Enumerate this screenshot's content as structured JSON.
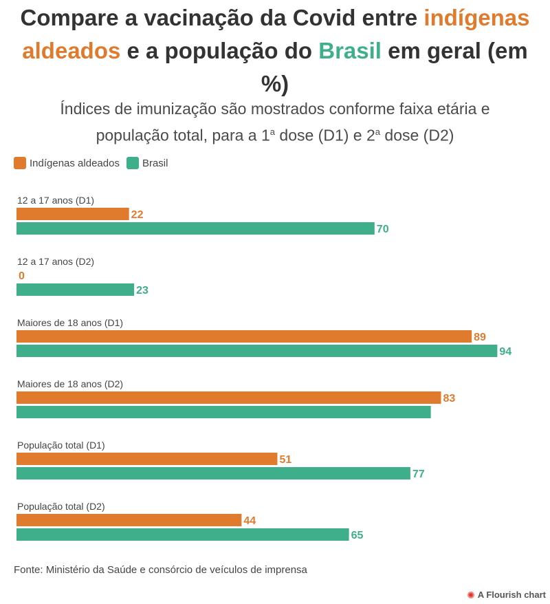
{
  "header": {
    "title_part1": "Compare a vacinação da Covid entre ",
    "title_highlight1": "indígenas aldeados",
    "title_part2": " e a população do ",
    "title_highlight2": "Brasil",
    "title_part3": " em geral (em %)",
    "subtitle_part1": "Índices de imunização são mostrados conforme faixa etária e população total, para a 1",
    "subtitle_sup1": "a",
    "subtitle_part2": " dose (D1) e 2",
    "subtitle_sup2": "a",
    "subtitle_part3": " dose (D2)"
  },
  "legend": [
    {
      "label": "Indígenas aldeados",
      "color": "#e07b2e"
    },
    {
      "label": "Brasil",
      "color": "#3eaf8a"
    }
  ],
  "colors": {
    "indigenas": "#e07b2e",
    "brasil": "#3eaf8a"
  },
  "chart_data": {
    "type": "bar",
    "orientation": "horizontal",
    "categories": [
      "12 a 17 anos (D1)",
      "12 a 17 anos (D2)",
      "Maiores de 18 anos (D1)",
      "Maiores de 18 anos (D2)",
      "População total (D1)",
      "População total (D2)"
    ],
    "series": [
      {
        "name": "Indígenas aldeados",
        "values": [
          22,
          0,
          89,
          83,
          51,
          44
        ],
        "labels": [
          "22",
          "0",
          "89",
          "83",
          "51",
          "44"
        ]
      },
      {
        "name": "Brasil",
        "values": [
          70,
          23,
          94,
          81,
          77,
          65
        ],
        "labels": [
          "70",
          "23",
          "94",
          "",
          "77",
          "65"
        ]
      }
    ],
    "xlim": [
      0,
      100
    ],
    "grid": false,
    "legend_position": "top-left"
  },
  "footer": {
    "source": "Fonte: Ministério da Saúde e consórcio de veículos de imprensa",
    "credit": "A Flourish chart"
  }
}
